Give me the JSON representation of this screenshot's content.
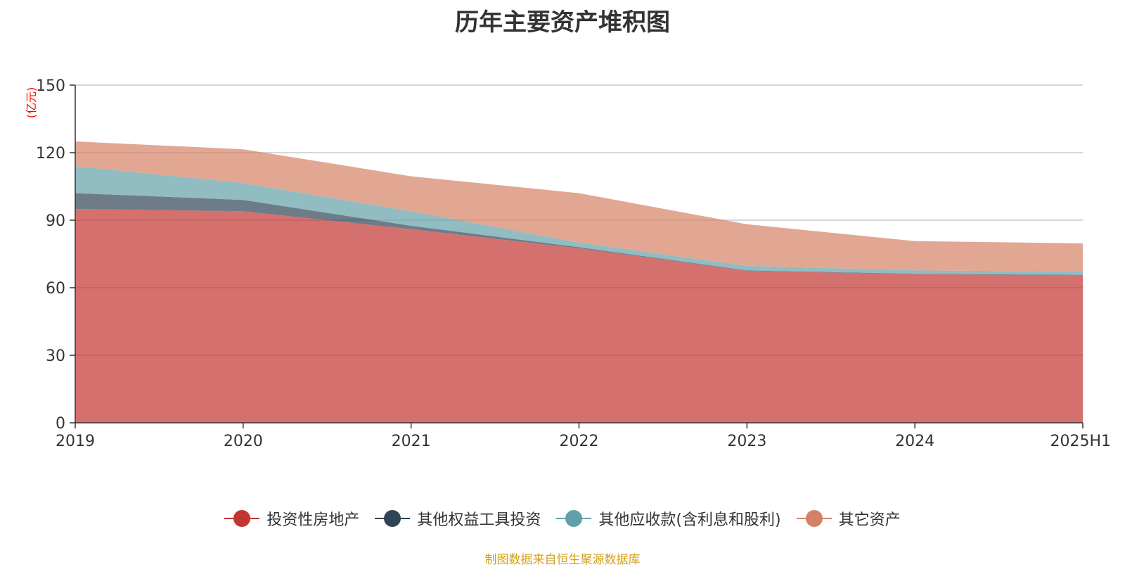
{
  "chart_data": {
    "type": "area",
    "stacked": true,
    "title": "历年主要资产堆积图",
    "yunit": "(亿元)",
    "x": [
      "2019",
      "2020",
      "2021",
      "2022",
      "2023",
      "2024",
      "2025H1"
    ],
    "ylim": [
      0,
      150
    ],
    "yticks": [
      0,
      30,
      60,
      90,
      120,
      150
    ],
    "grid": true,
    "legend_position": "bottom",
    "series": [
      {
        "name": "投资性房地产",
        "color": "#c23531",
        "values": [
          95,
          94,
          86,
          77.5,
          67.5,
          66,
          65.5
        ]
      },
      {
        "name": "其他权益工具投资",
        "color": "#2f4554",
        "values": [
          7,
          5,
          1.5,
          0.5,
          0.2,
          0.2,
          0.2
        ]
      },
      {
        "name": "其他应收款(含利息和股利)",
        "color": "#61a0a8",
        "values": [
          12,
          7.5,
          6.5,
          2,
          2,
          1.5,
          1.5
        ]
      },
      {
        "name": "其它资产",
        "color": "#d48265",
        "values": [
          11,
          15,
          15.5,
          22,
          18.5,
          13,
          12.5
        ]
      }
    ]
  },
  "source_note": "制图数据来自恒生聚源数据库"
}
